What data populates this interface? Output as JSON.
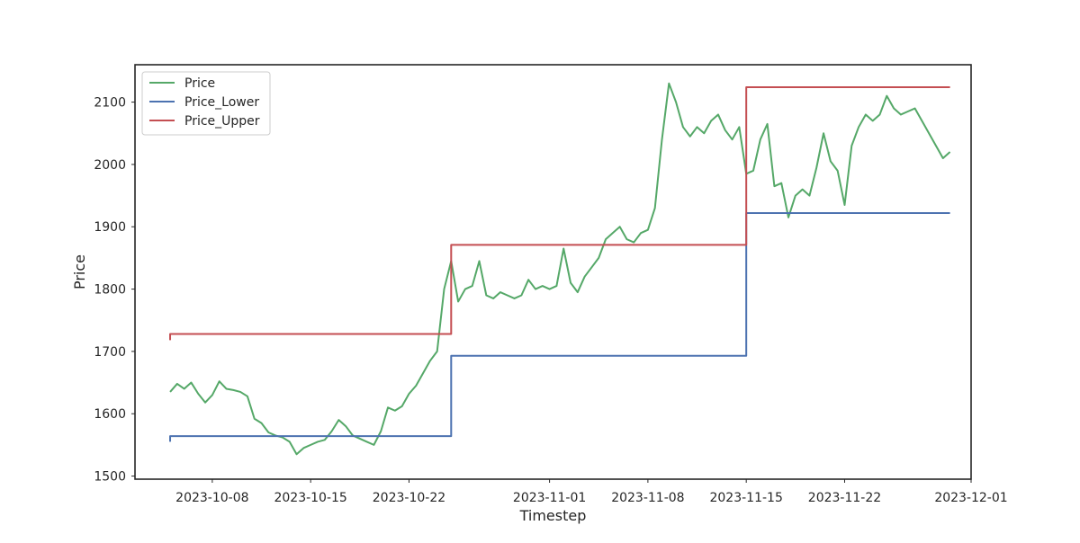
{
  "chart_data": {
    "type": "line",
    "title": "",
    "xlabel": "Timestep",
    "ylabel": "Price",
    "xlim": [
      "2023-10-02T12:00",
      "2023-12-01T00:00"
    ],
    "ylim": [
      1495,
      2160
    ],
    "grid": false,
    "legend_position": "top-left",
    "x_ticks": [
      "2023-10-08",
      "2023-10-15",
      "2023-10-22",
      "2023-11-01",
      "2023-11-08",
      "2023-11-15",
      "2023-11-22",
      "2023-12-01"
    ],
    "y_ticks": [
      1500,
      1600,
      1700,
      1800,
      1900,
      2000,
      2100
    ],
    "colors": {
      "Price": "#55a868",
      "Price_Lower": "#4c72b0",
      "Price_Upper": "#c44e52"
    },
    "series": [
      {
        "name": "Price",
        "points": [
          [
            "2023-10-05",
            1635
          ],
          [
            "2023-10-05T12:00",
            1648
          ],
          [
            "2023-10-06",
            1640
          ],
          [
            "2023-10-06T12:00",
            1650
          ],
          [
            "2023-10-07",
            1632
          ],
          [
            "2023-10-07T12:00",
            1618
          ],
          [
            "2023-10-08",
            1630
          ],
          [
            "2023-10-08T12:00",
            1652
          ],
          [
            "2023-10-09",
            1640
          ],
          [
            "2023-10-09T12:00",
            1638
          ],
          [
            "2023-10-10",
            1635
          ],
          [
            "2023-10-10T12:00",
            1628
          ],
          [
            "2023-10-11",
            1592
          ],
          [
            "2023-10-11T12:00",
            1585
          ],
          [
            "2023-10-12",
            1570
          ],
          [
            "2023-10-12T12:00",
            1565
          ],
          [
            "2023-10-13",
            1562
          ],
          [
            "2023-10-13T12:00",
            1555
          ],
          [
            "2023-10-14",
            1535
          ],
          [
            "2023-10-14T12:00",
            1545
          ],
          [
            "2023-10-15",
            1550
          ],
          [
            "2023-10-15T12:00",
            1555
          ],
          [
            "2023-10-16",
            1558
          ],
          [
            "2023-10-16T12:00",
            1572
          ],
          [
            "2023-10-17",
            1590
          ],
          [
            "2023-10-17T12:00",
            1580
          ],
          [
            "2023-10-18",
            1565
          ],
          [
            "2023-10-18T12:00",
            1560
          ],
          [
            "2023-10-19",
            1555
          ],
          [
            "2023-10-19T12:00",
            1550
          ],
          [
            "2023-10-20",
            1572
          ],
          [
            "2023-10-20T12:00",
            1610
          ],
          [
            "2023-10-21",
            1605
          ],
          [
            "2023-10-21T12:00",
            1612
          ],
          [
            "2023-10-22",
            1632
          ],
          [
            "2023-10-22T12:00",
            1645
          ],
          [
            "2023-10-23",
            1665
          ],
          [
            "2023-10-23T12:00",
            1685
          ],
          [
            "2023-10-24",
            1700
          ],
          [
            "2023-10-24T12:00",
            1800
          ],
          [
            "2023-10-25",
            1845
          ],
          [
            "2023-10-25T12:00",
            1780
          ],
          [
            "2023-10-26",
            1800
          ],
          [
            "2023-10-26T12:00",
            1805
          ],
          [
            "2023-10-27",
            1845
          ],
          [
            "2023-10-27T12:00",
            1790
          ],
          [
            "2023-10-28",
            1785
          ],
          [
            "2023-10-28T12:00",
            1795
          ],
          [
            "2023-10-29",
            1790
          ],
          [
            "2023-10-29T12:00",
            1785
          ],
          [
            "2023-10-30",
            1790
          ],
          [
            "2023-10-30T12:00",
            1815
          ],
          [
            "2023-10-31",
            1800
          ],
          [
            "2023-10-31T12:00",
            1805
          ],
          [
            "2023-11-01",
            1800
          ],
          [
            "2023-11-01T12:00",
            1805
          ],
          [
            "2023-11-02",
            1865
          ],
          [
            "2023-11-02T12:00",
            1810
          ],
          [
            "2023-11-03",
            1795
          ],
          [
            "2023-11-03T12:00",
            1820
          ],
          [
            "2023-11-04",
            1835
          ],
          [
            "2023-11-04T12:00",
            1850
          ],
          [
            "2023-11-05",
            1880
          ],
          [
            "2023-11-05T12:00",
            1890
          ],
          [
            "2023-11-06",
            1900
          ],
          [
            "2023-11-06T12:00",
            1880
          ],
          [
            "2023-11-07",
            1875
          ],
          [
            "2023-11-07T12:00",
            1890
          ],
          [
            "2023-11-08",
            1895
          ],
          [
            "2023-11-08T12:00",
            1930
          ],
          [
            "2023-11-09",
            2040
          ],
          [
            "2023-11-09T12:00",
            2130
          ],
          [
            "2023-11-10",
            2100
          ],
          [
            "2023-11-10T12:00",
            2060
          ],
          [
            "2023-11-11",
            2045
          ],
          [
            "2023-11-11T12:00",
            2060
          ],
          [
            "2023-11-12",
            2050
          ],
          [
            "2023-11-12T12:00",
            2070
          ],
          [
            "2023-11-13",
            2080
          ],
          [
            "2023-11-13T12:00",
            2055
          ],
          [
            "2023-11-14",
            2040
          ],
          [
            "2023-11-14T12:00",
            2060
          ],
          [
            "2023-11-15",
            1985
          ],
          [
            "2023-11-15T12:00",
            1990
          ],
          [
            "2023-11-16",
            2040
          ],
          [
            "2023-11-16T12:00",
            2065
          ],
          [
            "2023-11-17",
            1965
          ],
          [
            "2023-11-17T12:00",
            1970
          ],
          [
            "2023-11-18",
            1915
          ],
          [
            "2023-11-18T12:00",
            1950
          ],
          [
            "2023-11-19",
            1960
          ],
          [
            "2023-11-19T12:00",
            1950
          ],
          [
            "2023-11-20",
            1995
          ],
          [
            "2023-11-20T12:00",
            2050
          ],
          [
            "2023-11-21",
            2005
          ],
          [
            "2023-11-21T12:00",
            1990
          ],
          [
            "2023-11-22",
            1935
          ],
          [
            "2023-11-22T12:00",
            2030
          ],
          [
            "2023-11-23",
            2060
          ],
          [
            "2023-11-23T12:00",
            2080
          ],
          [
            "2023-11-24",
            2070
          ],
          [
            "2023-11-24T12:00",
            2080
          ],
          [
            "2023-11-25",
            2110
          ],
          [
            "2023-11-25T12:00",
            2090
          ],
          [
            "2023-11-26",
            2080
          ],
          [
            "2023-11-26T12:00",
            2085
          ],
          [
            "2023-11-27",
            2090
          ],
          [
            "2023-11-27T12:00",
            2070
          ],
          [
            "2023-11-28",
            2050
          ],
          [
            "2023-11-28T12:00",
            2030
          ],
          [
            "2023-11-29",
            2010
          ],
          [
            "2023-11-29T12:00",
            2020
          ]
        ]
      },
      {
        "name": "Price_Lower",
        "step": true,
        "points": [
          [
            "2023-10-05",
            1555
          ],
          [
            "2023-10-05",
            1564
          ],
          [
            "2023-10-25",
            1564
          ],
          [
            "2023-10-25",
            1693
          ],
          [
            "2023-11-15",
            1693
          ],
          [
            "2023-11-15",
            1922
          ],
          [
            "2023-11-29T12:00",
            1922
          ]
        ]
      },
      {
        "name": "Price_Upper",
        "step": true,
        "points": [
          [
            "2023-10-05",
            1718
          ],
          [
            "2023-10-05",
            1728
          ],
          [
            "2023-10-25",
            1728
          ],
          [
            "2023-10-25",
            1871
          ],
          [
            "2023-11-15",
            1871
          ],
          [
            "2023-11-15",
            2124
          ],
          [
            "2023-11-29T12:00",
            2124
          ]
        ]
      }
    ]
  }
}
